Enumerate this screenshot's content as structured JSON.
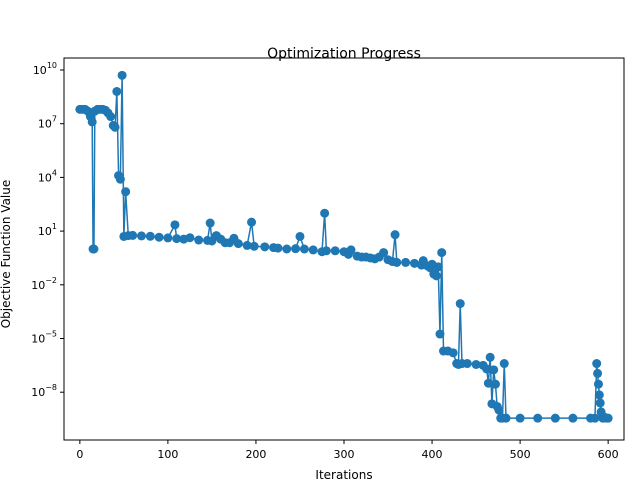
{
  "chart_data": {
    "type": "line",
    "title": "Optimization Progress",
    "xlabel": "Iterations",
    "ylabel": "Objective Function Value",
    "xlim": [
      -18,
      618
    ],
    "ylim_log10": [
      -10.67,
      10.67
    ],
    "y_scale": "log",
    "grid": false,
    "x_ticks": [
      0,
      100,
      200,
      300,
      400,
      500,
      600
    ],
    "y_ticks": [
      {
        "exp": 10,
        "label": "10",
        "label_sup": "10"
      },
      {
        "exp": 7,
        "label": "10",
        "label_sup": "7"
      },
      {
        "exp": 4,
        "label": "10",
        "label_sup": "4"
      },
      {
        "exp": 1,
        "label": "10",
        "label_sup": "1"
      },
      {
        "exp": -2,
        "label": "10",
        "label_sup": "−2"
      },
      {
        "exp": -5,
        "label": "10",
        "label_sup": "−5"
      },
      {
        "exp": -8,
        "label": "10",
        "label_sup": "−8"
      }
    ],
    "color": "#1f77b4",
    "series": [
      {
        "name": "",
        "marker": "circle",
        "points_log10": [
          [
            0,
            7.8
          ],
          [
            3,
            7.8
          ],
          [
            6,
            7.8
          ],
          [
            9,
            7.7
          ],
          [
            12,
            7.4
          ],
          [
            14,
            7.1
          ],
          [
            15,
            0.0
          ],
          [
            16,
            0.0
          ],
          [
            17,
            7.7
          ],
          [
            20,
            7.8
          ],
          [
            23,
            7.8
          ],
          [
            26,
            7.8
          ],
          [
            29,
            7.75
          ],
          [
            32,
            7.6
          ],
          [
            35,
            7.4
          ],
          [
            38,
            6.9
          ],
          [
            40,
            6.8
          ],
          [
            42,
            8.8
          ],
          [
            44,
            4.1
          ],
          [
            46,
            3.9
          ],
          [
            48,
            9.7
          ],
          [
            50,
            0.7
          ],
          [
            52,
            3.2
          ],
          [
            55,
            0.75
          ],
          [
            60,
            0.76
          ],
          [
            70,
            0.73
          ],
          [
            80,
            0.71
          ],
          [
            90,
            0.66
          ],
          [
            100,
            0.62
          ],
          [
            108,
            1.35
          ],
          [
            110,
            0.58
          ],
          [
            118,
            0.55
          ],
          [
            125,
            0.63
          ],
          [
            135,
            0.5
          ],
          [
            145,
            0.48
          ],
          [
            148,
            1.45
          ],
          [
            150,
            0.45
          ],
          [
            155,
            0.75
          ],
          [
            160,
            0.55
          ],
          [
            165,
            0.35
          ],
          [
            170,
            0.35
          ],
          [
            175,
            0.6
          ],
          [
            180,
            0.3
          ],
          [
            190,
            0.2
          ],
          [
            195,
            1.5
          ],
          [
            198,
            0.15
          ],
          [
            210,
            0.12
          ],
          [
            220,
            0.08
          ],
          [
            225,
            0.05
          ],
          [
            235,
            0.0
          ],
          [
            245,
            0.02
          ],
          [
            250,
            0.7
          ],
          [
            255,
            0.0
          ],
          [
            265,
            -0.05
          ],
          [
            275,
            -0.15
          ],
          [
            278,
            2.0
          ],
          [
            280,
            -0.1
          ],
          [
            290,
            -0.1
          ],
          [
            300,
            -0.15
          ],
          [
            305,
            -0.3
          ],
          [
            308,
            -0.05
          ],
          [
            315,
            -0.4
          ],
          [
            320,
            -0.45
          ],
          [
            325,
            -0.45
          ],
          [
            330,
            -0.5
          ],
          [
            335,
            -0.55
          ],
          [
            340,
            -0.45
          ],
          [
            345,
            -0.2
          ],
          [
            350,
            -0.6
          ],
          [
            355,
            -0.7
          ],
          [
            358,
            0.8
          ],
          [
            360,
            -0.75
          ],
          [
            370,
            -0.75
          ],
          [
            380,
            -0.8
          ],
          [
            388,
            -0.9
          ],
          [
            390,
            -0.65
          ],
          [
            395,
            -0.95
          ],
          [
            398,
            -1.05
          ],
          [
            400,
            -0.85
          ],
          [
            402,
            -1.4
          ],
          [
            405,
            -1.5
          ],
          [
            407,
            -1.0
          ],
          [
            409,
            -4.75
          ],
          [
            411,
            -0.2
          ],
          [
            413,
            -5.7
          ],
          [
            418,
            -5.7
          ],
          [
            424,
            -5.8
          ],
          [
            428,
            -6.4
          ],
          [
            430,
            -6.45
          ],
          [
            432,
            -3.05
          ],
          [
            434,
            -6.4
          ],
          [
            440,
            -6.4
          ],
          [
            450,
            -6.45
          ],
          [
            458,
            -6.5
          ],
          [
            462,
            -6.7
          ],
          [
            464,
            -7.5
          ],
          [
            466,
            -6.05
          ],
          [
            468,
            -8.65
          ],
          [
            470,
            -6.75
          ],
          [
            472,
            -7.55
          ],
          [
            474,
            -8.8
          ],
          [
            476,
            -9.0
          ],
          [
            478,
            -9.45
          ],
          [
            480,
            -9.45
          ],
          [
            482,
            -6.4
          ],
          [
            484,
            -9.45
          ],
          [
            500,
            -9.45
          ],
          [
            520,
            -9.45
          ],
          [
            540,
            -9.45
          ],
          [
            560,
            -9.45
          ],
          [
            580,
            -9.45
          ],
          [
            585,
            -9.45
          ],
          [
            587,
            -6.4
          ],
          [
            588,
            -6.95
          ],
          [
            589,
            -7.55
          ],
          [
            590,
            -8.15
          ],
          [
            591,
            -8.6
          ],
          [
            592,
            -9.1
          ],
          [
            594,
            -9.45
          ],
          [
            596,
            -9.4
          ],
          [
            598,
            -9.45
          ],
          [
            600,
            -9.45
          ]
        ]
      }
    ]
  }
}
